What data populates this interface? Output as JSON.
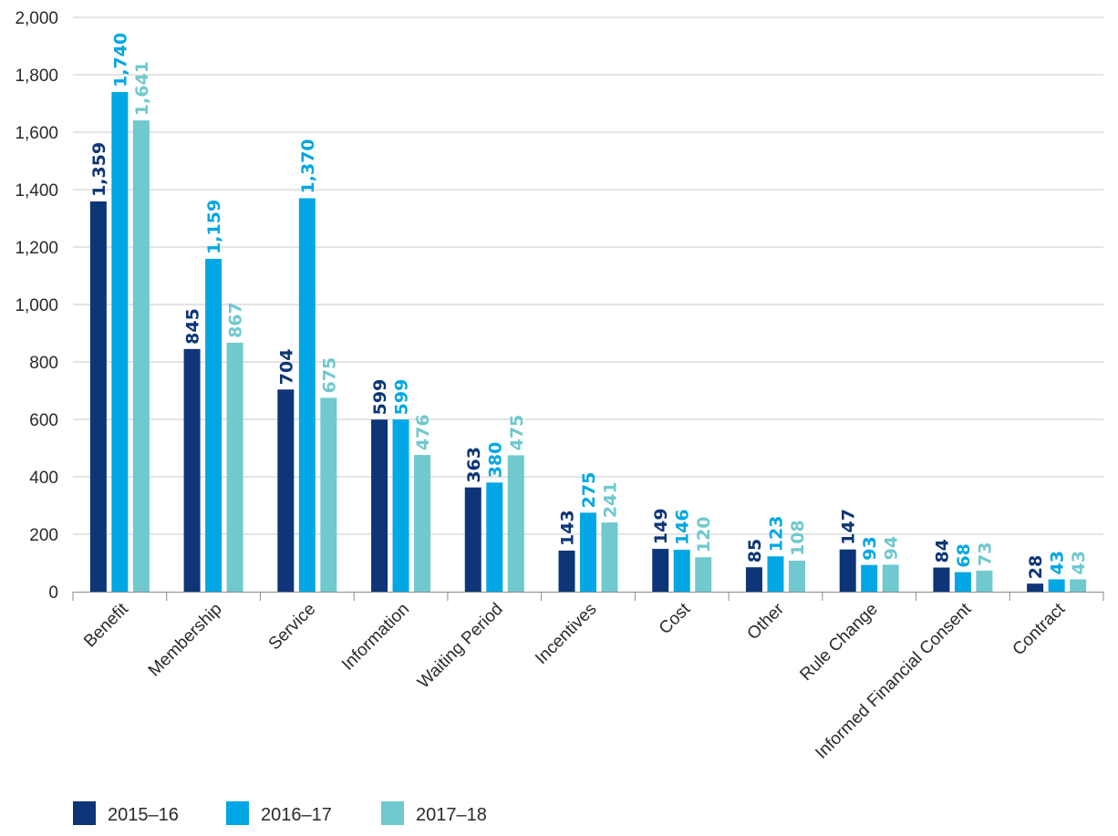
{
  "chart_data": {
    "type": "bar",
    "categories": [
      "Benefit",
      "Membership",
      "Service",
      "Information",
      "Waiting Period",
      "Incentives",
      "Cost",
      "Other",
      "Rule Change",
      "Informed Financial Consent",
      "Contract"
    ],
    "series": [
      {
        "name": "2015–16",
        "color": "#0d3577",
        "values": [
          1359,
          845,
          704,
          599,
          363,
          143,
          149,
          85,
          147,
          84,
          28
        ],
        "labels": [
          "1,359",
          "845",
          "704",
          "599",
          "363",
          "143",
          "149",
          "85",
          "147",
          "84",
          "28"
        ]
      },
      {
        "name": "2016–17",
        "color": "#00a7e4",
        "values": [
          1740,
          1159,
          1370,
          599,
          380,
          275,
          146,
          123,
          93,
          68,
          43
        ],
        "labels": [
          "1,740",
          "1,159",
          "1,370",
          "599",
          "380",
          "275",
          "146",
          "123",
          "93",
          "68",
          "43"
        ]
      },
      {
        "name": "2017–18",
        "color": "#6fc9ce",
        "values": [
          1641,
          867,
          675,
          476,
          475,
          241,
          120,
          108,
          94,
          73,
          43
        ],
        "labels": [
          "1,641",
          "867",
          "675",
          "476",
          "475",
          "241",
          "120",
          "108",
          "94",
          "73",
          "43"
        ]
      }
    ],
    "ylim": [
      0,
      2000
    ],
    "yticks": [
      0,
      200,
      400,
      600,
      800,
      1000,
      1200,
      1400,
      1600,
      1800,
      2000
    ],
    "ytick_labels": [
      "0",
      "200",
      "400",
      "600",
      "800",
      "1,000",
      "1,200",
      "1,400",
      "1,600",
      "1,800",
      "2,000"
    ],
    "title": "",
    "xlabel": "",
    "ylabel": "",
    "grid": true,
    "legend_position": "bottom-left"
  }
}
